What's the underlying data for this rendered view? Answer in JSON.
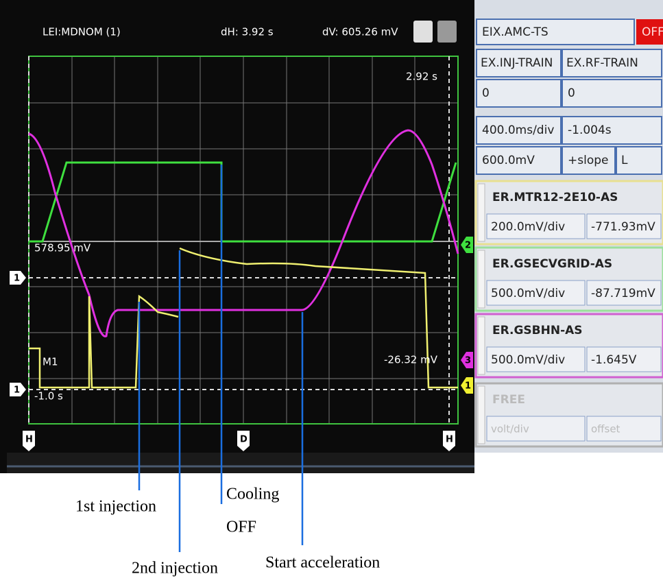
{
  "scope": {
    "header": {
      "trace": "LEI:MDNOM (1)",
      "dh": "dH: 3.92 s",
      "dv": "dV: 605.26 mV"
    },
    "labels": {
      "cursor_time": "2.92 s",
      "level": "578.95 mV",
      "memory": "M1",
      "cursor_volt": "-26.32 mV",
      "start_time": "-1.0 s"
    },
    "markers": {
      "ch1_ref_a": "1",
      "ch1_ref_b": "1",
      "ch2": "2",
      "ch3": "3",
      "ch1_right": "1",
      "h_left": "H",
      "delay": "D",
      "h_right": "H"
    }
  },
  "panel": {
    "source": "EIX.AMC-TS",
    "state": "OFF",
    "trigger": [
      [
        "EX.INJ-TRAIN",
        "EX.RF-TRAIN"
      ],
      [
        "0",
        "0"
      ]
    ],
    "timebase": [
      "400.0ms/div",
      "-1.004s"
    ],
    "level": [
      "600.0mV",
      "+slope",
      "L"
    ],
    "channels": [
      {
        "name": "ER.MTR12-2E10-AS",
        "scale": "200.0mV/div",
        "offset": "-771.93mV"
      },
      {
        "name": "ER.GSECVGRID-AS",
        "scale": "500.0mV/div",
        "offset": "-87.719mV"
      },
      {
        "name": "ER.GSBHN-AS",
        "scale": "500.0mV/div",
        "offset": "-1.645V"
      },
      {
        "name": "FREE",
        "scale": "volt/div",
        "offset": "offset"
      }
    ]
  },
  "annotations": {
    "first_injection": "1st injection",
    "cooling": "Cooling",
    "cooling_off": "OFF",
    "second_injection": "2nd injection",
    "start_acceleration": "Start acceleration"
  }
}
